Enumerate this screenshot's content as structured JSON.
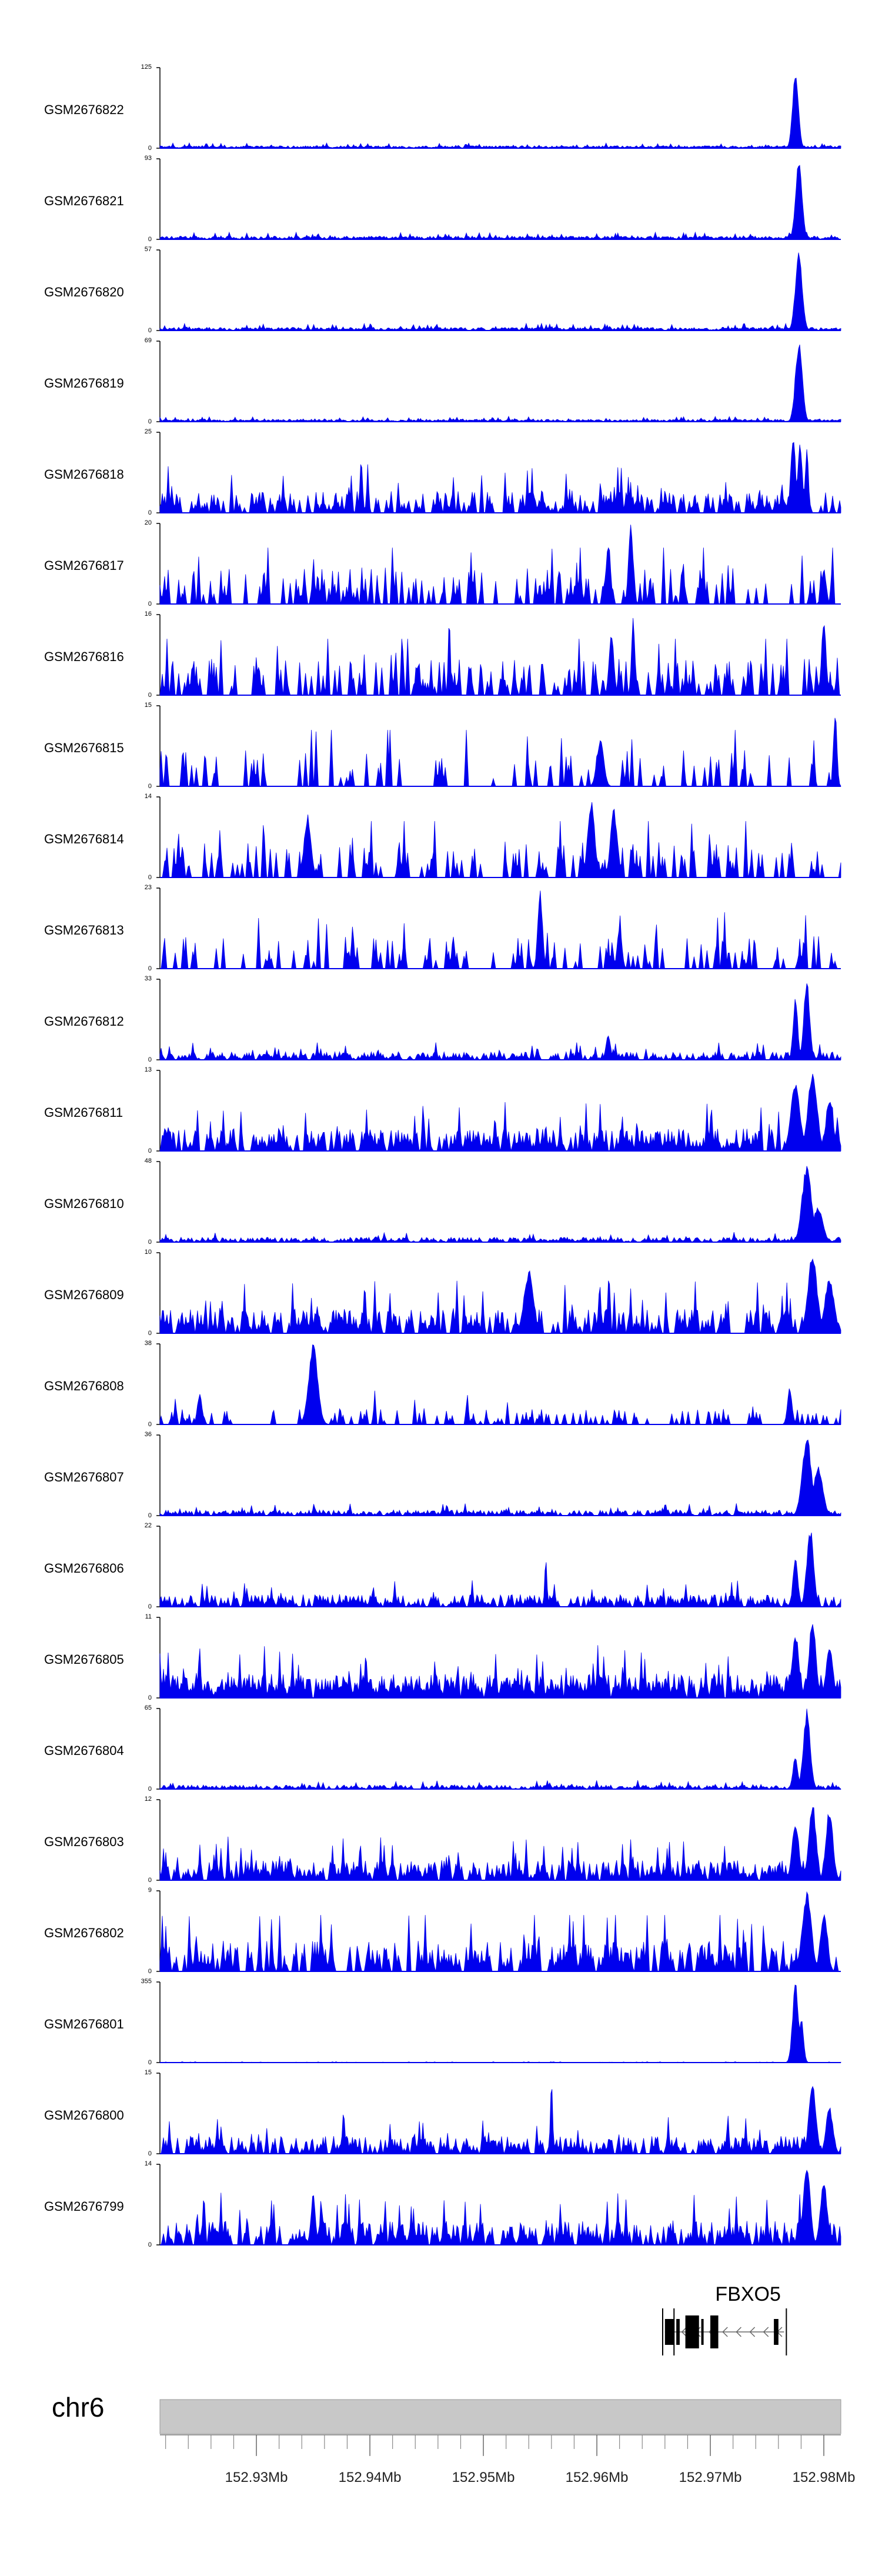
{
  "chart_data": {
    "type": "area",
    "title": "",
    "xlabel": "",
    "ylabel": "",
    "colors": {
      "signal": "#0000ee",
      "axis": "#000000",
      "ideogram": "#c8c8c8",
      "gene": "#000000"
    },
    "x_range": [
      152.9215,
      152.9815
    ],
    "x_ticks": [
      {
        "value": 152.93,
        "label": "152.93Mb"
      },
      {
        "value": 152.94,
        "label": "152.94Mb"
      },
      {
        "value": 152.95,
        "label": "152.95Mb"
      },
      {
        "value": 152.96,
        "label": "152.96Mb"
      },
      {
        "value": 152.97,
        "label": "152.97Mb"
      },
      {
        "value": 152.98,
        "label": "152.98Mb"
      }
    ],
    "chromosome": {
      "name": "chr6"
    },
    "gene": {
      "name": "FBXO5",
      "strand": "-",
      "start": 152.966,
      "end": 152.9765,
      "exons": [
        {
          "start": 152.966,
          "end": 152.9668
        },
        {
          "start": 152.967,
          "end": 152.9673
        },
        {
          "start": 152.9678,
          "end": 152.969
        },
        {
          "start": 152.9692,
          "end": 152.9694
        },
        {
          "start": 152.97,
          "end": 152.9707
        },
        {
          "start": 152.9756,
          "end": 152.976
        }
      ]
    },
    "series": [
      {
        "name": "GSM2676822",
        "ymax": 125,
        "ymin": 0,
        "peaks": [
          [
            152.9775,
            125,
            0.00025
          ]
        ],
        "noise": 0.03,
        "sparsity": 0.2
      },
      {
        "name": "GSM2676821",
        "ymax": 93,
        "ymin": 0,
        "peaks": [
          [
            152.9778,
            93,
            0.00028
          ]
        ],
        "noise": 0.04,
        "sparsity": 0.2
      },
      {
        "name": "GSM2676820",
        "ymax": 57,
        "ymin": 0,
        "peaks": [
          [
            152.9778,
            57,
            0.0003
          ]
        ],
        "noise": 0.04,
        "sparsity": 0.2
      },
      {
        "name": "GSM2676819",
        "ymax": 69,
        "ymin": 0,
        "peaks": [
          [
            152.9778,
            69,
            0.0003
          ]
        ],
        "noise": 0.03,
        "sparsity": 0.2
      },
      {
        "name": "GSM2676818",
        "ymax": 25,
        "ymin": 0,
        "peaks": [
          [
            152.9773,
            25,
            0.0002
          ],
          [
            152.9779,
            22,
            0.0002
          ],
          [
            152.9785,
            20,
            0.00015
          ]
        ],
        "noise": 0.28,
        "sparsity": 0.6
      },
      {
        "name": "GSM2676817",
        "ymax": 20,
        "ymin": 0,
        "peaks": [
          [
            152.963,
            20,
            0.0002
          ],
          [
            152.961,
            16,
            0.0002
          ],
          [
            152.98,
            9,
            0.0002
          ]
        ],
        "noise": 0.45,
        "sparsity": 0.75
      },
      {
        "name": "GSM2676816",
        "ymax": 16,
        "ymin": 0,
        "peaks": [
          [
            152.947,
            16,
            0.0001
          ],
          [
            152.9632,
            16,
            0.00015
          ],
          [
            152.98,
            15,
            0.0002
          ],
          [
            152.9613,
            13,
            0.0002
          ]
        ],
        "noise": 0.45,
        "sparsity": 0.7
      },
      {
        "name": "GSM2676815",
        "ymax": 15,
        "ymin": 0,
        "peaks": [
          [
            152.981,
            15,
            0.00015
          ],
          [
            152.9603,
            9,
            0.0003
          ]
        ],
        "noise": 0.45,
        "sparsity": 0.85
      },
      {
        "name": "GSM2676814",
        "ymax": 14,
        "ymin": 0,
        "peaks": [
          [
            152.9595,
            14,
            0.0003
          ],
          [
            152.9615,
            12,
            0.0003
          ],
          [
            152.9345,
            11,
            0.0003
          ]
        ],
        "noise": 0.45,
        "sparsity": 0.8
      },
      {
        "name": "GSM2676813",
        "ymax": 23,
        "ymin": 0,
        "peaks": [
          [
            152.955,
            23,
            0.0002
          ],
          [
            152.962,
            13,
            0.0002
          ]
        ],
        "noise": 0.4,
        "sparsity": 0.8
      },
      {
        "name": "GSM2676812",
        "ymax": 33,
        "ymin": 0,
        "peaks": [
          [
            152.9785,
            33,
            0.00025
          ],
          [
            152.9775,
            26,
            0.0002
          ],
          [
            152.961,
            10,
            0.0002
          ]
        ],
        "noise": 0.1,
        "sparsity": 0.45
      },
      {
        "name": "GSM2676811",
        "ymax": 13,
        "ymin": 0,
        "peaks": [
          [
            152.979,
            13,
            0.0004
          ],
          [
            152.9775,
            11,
            0.0004
          ],
          [
            152.9805,
            9,
            0.0003
          ]
        ],
        "noise": 0.28,
        "sparsity": 0.45
      },
      {
        "name": "GSM2676810",
        "ymax": 48,
        "ymin": 0,
        "peaks": [
          [
            152.9785,
            48,
            0.0004
          ],
          [
            152.9795,
            22,
            0.0004
          ]
        ],
        "noise": 0.06,
        "sparsity": 0.4
      },
      {
        "name": "GSM2676809",
        "ymax": 10,
        "ymin": 0,
        "peaks": [
          [
            152.979,
            10,
            0.0004
          ],
          [
            152.954,
            8,
            0.0004
          ],
          [
            152.9805,
            7,
            0.0004
          ]
        ],
        "noise": 0.3,
        "sparsity": 0.45
      },
      {
        "name": "GSM2676808",
        "ymax": 38,
        "ymin": 0,
        "peaks": [
          [
            152.935,
            38,
            0.0004
          ],
          [
            152.977,
            18,
            0.0002
          ],
          [
            152.925,
            15,
            0.0002
          ]
        ],
        "noise": 0.2,
        "sparsity": 0.8
      },
      {
        "name": "GSM2676807",
        "ymax": 36,
        "ymin": 0,
        "peaks": [
          [
            152.9785,
            36,
            0.0004
          ],
          [
            152.9795,
            22,
            0.0004
          ]
        ],
        "noise": 0.07,
        "sparsity": 0.4
      },
      {
        "name": "GSM2676806",
        "ymax": 22,
        "ymin": 0,
        "peaks": [
          [
            152.9788,
            22,
            0.0003
          ],
          [
            152.9775,
            15,
            0.0002
          ],
          [
            152.9555,
            13,
            0.0001
          ]
        ],
        "noise": 0.15,
        "sparsity": 0.45
      },
      {
        "name": "GSM2676805",
        "ymax": 11,
        "ymin": 0,
        "peaks": [
          [
            152.979,
            11,
            0.0003
          ],
          [
            152.9775,
            9,
            0.0003
          ],
          [
            152.9805,
            7,
            0.0003
          ]
        ],
        "noise": 0.3,
        "sparsity": 0.3
      },
      {
        "name": "GSM2676804",
        "ymax": 65,
        "ymin": 0,
        "peaks": [
          [
            152.9785,
            65,
            0.0003
          ],
          [
            152.9775,
            28,
            0.0002
          ]
        ],
        "noise": 0.05,
        "sparsity": 0.4
      },
      {
        "name": "GSM2676803",
        "ymax": 12,
        "ymin": 0,
        "peaks": [
          [
            152.979,
            12,
            0.0003
          ],
          [
            152.9805,
            11,
            0.0003
          ],
          [
            152.9775,
            9,
            0.0003
          ]
        ],
        "noise": 0.25,
        "sparsity": 0.45
      },
      {
        "name": "GSM2676802",
        "ymax": 9,
        "ymin": 0,
        "peaks": [
          [
            152.9785,
            9,
            0.0004
          ],
          [
            152.98,
            7,
            0.0003
          ]
        ],
        "noise": 0.38,
        "sparsity": 0.6
      },
      {
        "name": "GSM2676801",
        "ymax": 355,
        "ymin": 0,
        "peaks": [
          [
            152.9775,
            355,
            0.00025
          ],
          [
            152.978,
            200,
            0.0002
          ]
        ],
        "noise": 0.005,
        "sparsity": 0.3
      },
      {
        "name": "GSM2676800",
        "ymax": 15,
        "ymin": 0,
        "peaks": [
          [
            152.956,
            15,
            0.0001
          ],
          [
            152.979,
            14,
            0.0003
          ],
          [
            152.9805,
            9,
            0.0003
          ]
        ],
        "noise": 0.22,
        "sparsity": 0.5
      },
      {
        "name": "GSM2676799",
        "ymax": 14,
        "ymin": 0,
        "peaks": [
          [
            152.9785,
            14,
            0.0003
          ],
          [
            152.98,
            11,
            0.0003
          ],
          [
            152.935,
            9,
            0.0002
          ]
        ],
        "noise": 0.3,
        "sparsity": 0.5
      }
    ]
  }
}
